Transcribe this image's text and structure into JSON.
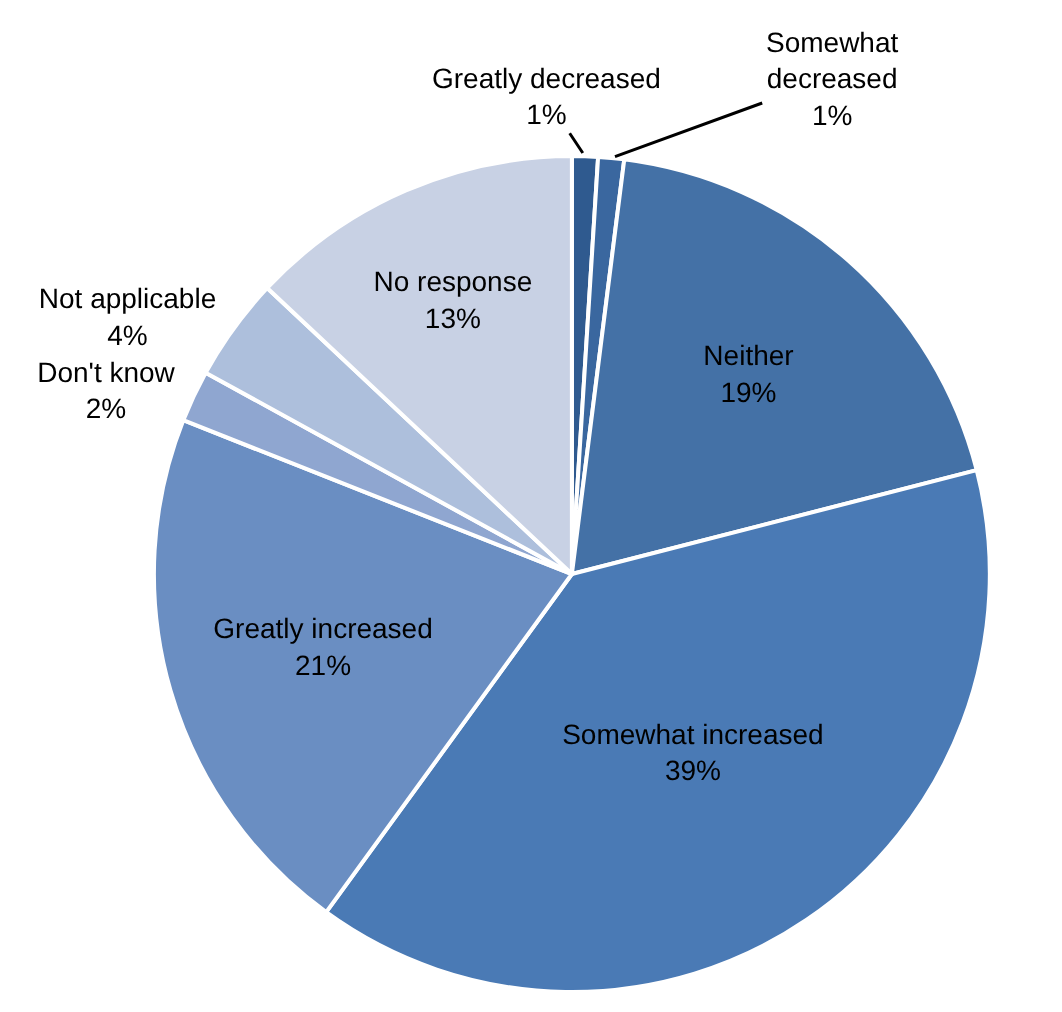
{
  "chart_data": {
    "type": "pie",
    "categories": [
      "Greatly decreased",
      "Somewhat decreased",
      "Neither",
      "Somewhat increased",
      "Greatly increased",
      "Don't know",
      "Not applicable",
      "No response"
    ],
    "values": [
      1,
      1,
      19,
      39,
      21,
      2,
      4,
      13
    ],
    "value_labels": [
      "1%",
      "1%",
      "19%",
      "39%",
      "21%",
      "2%",
      "4%",
      "13%"
    ],
    "colors": [
      "#2f5a8f",
      "#3a679f",
      "#4471a6",
      "#4a7ab5",
      "#6a8ec2",
      "#8fa6d0",
      "#adbfdc",
      "#c8d1e4"
    ],
    "legend": false
  }
}
